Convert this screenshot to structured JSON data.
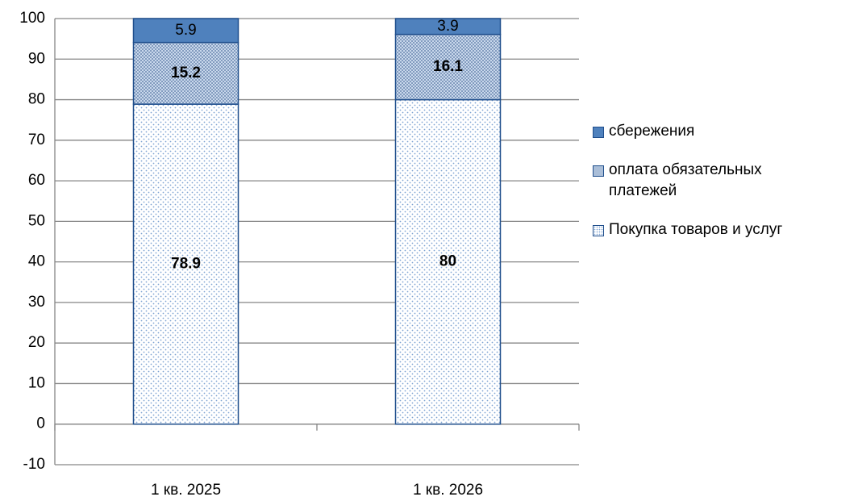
{
  "chart_data": {
    "type": "stacked_bar",
    "categories": [
      "1 кв. 2025",
      "1 кв. 2026"
    ],
    "series": [
      {
        "name": "Покупка товаров и услуг",
        "color": "#4f81bd",
        "values": [
          78.9,
          80
        ]
      },
      {
        "name": "оплата обязательных платежей",
        "color": "#4f81bd",
        "values": [
          15.2,
          16.1
        ]
      },
      {
        "name": "сбережения",
        "color": "#4f81bd",
        "values": [
          5.9,
          3.9
        ]
      }
    ],
    "ylim": [
      -10,
      100
    ],
    "yticks": [
      -10,
      0,
      10,
      20,
      30,
      40,
      50,
      60,
      70,
      80,
      90,
      100
    ],
    "grid": true,
    "legend": "right"
  }
}
